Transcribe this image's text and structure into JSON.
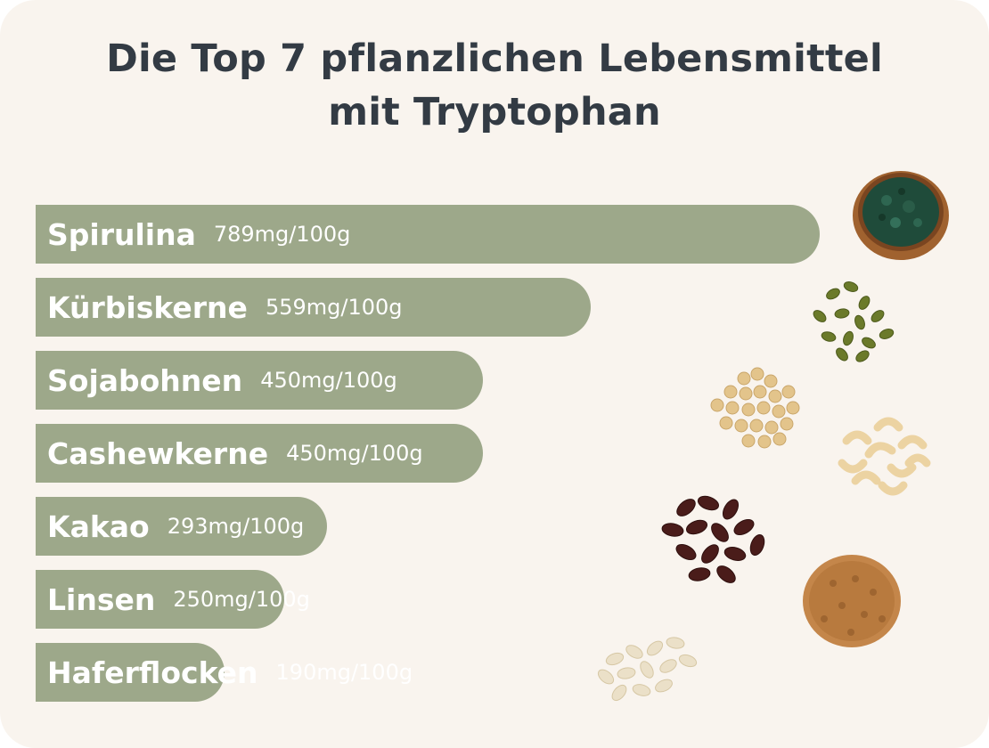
{
  "title_line1": "Die Top 7 pflanzlichen Lebensmittel",
  "title_line2": "mit Tryptophan",
  "bar_color": "#9da88a",
  "chart_data": {
    "type": "bar",
    "orientation": "horizontal",
    "categories": [
      "Spirulina",
      "Kürbiskerne",
      "Sojabohnen",
      "Cashewkerne",
      "Kakao",
      "Linsen",
      "Haferflocken"
    ],
    "values": [
      789,
      559,
      450,
      450,
      293,
      250,
      190
    ],
    "value_labels": [
      "789mg/100g",
      "559mg/100g",
      "450mg/100g",
      "450mg/100g",
      "293mg/100g",
      "250mg/100g",
      "190mg/100g"
    ],
    "unit": "mg/100g",
    "icons": [
      "spirulina-bowl-icon",
      "pumpkin-seeds-icon",
      "soybeans-icon",
      "cashews-icon",
      "cacao-beans-icon",
      "lentils-icon",
      "oat-flakes-icon"
    ]
  }
}
